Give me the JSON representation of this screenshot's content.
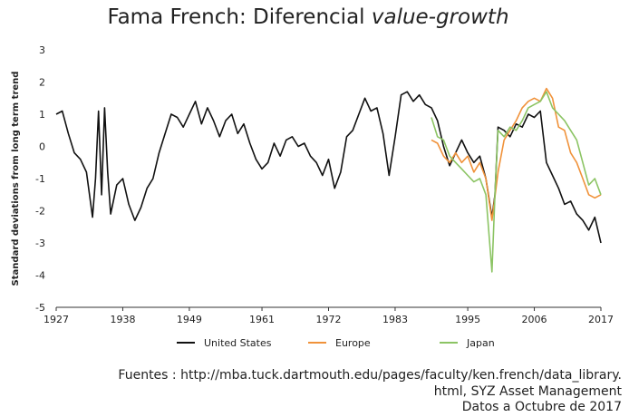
{
  "chart_data": {
    "type": "line",
    "title": "Fama French: Diferencial",
    "title_emphasis": "value-growth",
    "ylabel": "Standard deviations from long term trend",
    "xlim": [
      1927,
      2017
    ],
    "xticks": [
      1927,
      1938,
      1949,
      1961,
      1972,
      1983,
      1995,
      2006,
      2017
    ],
    "ylim": [
      -5,
      3
    ],
    "yticks": [
      3,
      2,
      1,
      0,
      -1,
      -2,
      -3,
      -4,
      -5
    ],
    "series": [
      {
        "name": "United States",
        "color": "#111111",
        "x": [
          1927,
          1928,
          1929,
          1930,
          1931,
          1932,
          1933,
          1933.5,
          1934,
          1934.5,
          1935,
          1935.5,
          1936,
          1937,
          1938,
          1939,
          1940,
          1941,
          1942,
          1943,
          1944,
          1945,
          1946,
          1947,
          1948,
          1949,
          1950,
          1951,
          1952,
          1953,
          1954,
          1955,
          1956,
          1957,
          1958,
          1959,
          1960,
          1961,
          1962,
          1963,
          1964,
          1965,
          1966,
          1967,
          1968,
          1969,
          1970,
          1971,
          1972,
          1973,
          1974,
          1975,
          1976,
          1977,
          1978,
          1979,
          1980,
          1981,
          1982,
          1983,
          1984,
          1985,
          1986,
          1987,
          1988,
          1989,
          1990,
          1991,
          1992,
          1993,
          1994,
          1995,
          1996,
          1997,
          1998,
          1999,
          1999.5,
          2000,
          2001,
          2002,
          2003,
          2004,
          2005,
          2006,
          2007,
          2008,
          2009,
          2010,
          2011,
          2012,
          2013,
          2014,
          2015,
          2016,
          2017
        ],
        "values": [
          1.0,
          1.1,
          0.4,
          -0.2,
          -0.4,
          -0.8,
          -2.2,
          -1.0,
          1.1,
          -1.5,
          1.2,
          -0.8,
          -2.1,
          -1.2,
          -1.0,
          -1.8,
          -2.3,
          -1.9,
          -1.3,
          -1.0,
          -0.2,
          0.4,
          1.0,
          0.9,
          0.6,
          1.0,
          1.4,
          0.7,
          1.2,
          0.8,
          0.3,
          0.8,
          1.0,
          0.4,
          0.7,
          0.1,
          -0.4,
          -0.7,
          -0.5,
          0.1,
          -0.3,
          0.2,
          0.3,
          0.0,
          0.1,
          -0.3,
          -0.5,
          -0.9,
          -0.4,
          -1.3,
          -0.8,
          0.3,
          0.5,
          1.0,
          1.5,
          1.1,
          1.2,
          0.4,
          -0.9,
          0.3,
          1.6,
          1.7,
          1.4,
          1.6,
          1.3,
          1.2,
          0.8,
          0.0,
          -0.6,
          -0.2,
          0.2,
          -0.2,
          -0.5,
          -0.3,
          -1.0,
          -2.2,
          -1.5,
          0.6,
          0.5,
          0.3,
          0.7,
          0.6,
          1.0,
          0.9,
          1.1,
          -0.5,
          -0.9,
          -1.3,
          -1.8,
          -1.7,
          -2.1,
          -2.3,
          -2.6,
          -2.2,
          -3.0
        ]
      },
      {
        "name": "Europe",
        "color": "#f0923a",
        "x": [
          1989,
          1990,
          1991,
          1992,
          1993,
          1994,
          1995,
          1996,
          1997,
          1998,
          1999,
          2000,
          2001,
          2002,
          2003,
          2004,
          2005,
          2006,
          2007,
          2008,
          2009,
          2010,
          2011,
          2012,
          2013,
          2014,
          2015,
          2016,
          2017
        ],
        "values": [
          0.2,
          0.1,
          -0.3,
          -0.5,
          -0.2,
          -0.5,
          -0.3,
          -0.8,
          -0.5,
          -1.0,
          -2.3,
          -0.8,
          0.2,
          0.5,
          0.8,
          1.2,
          1.4,
          1.5,
          1.4,
          1.8,
          1.5,
          0.6,
          0.5,
          -0.2,
          -0.5,
          -1.0,
          -1.5,
          -1.6,
          -1.5
        ]
      },
      {
        "name": "Japan",
        "color": "#8cc464",
        "x": [
          1989,
          1990,
          1991,
          1992,
          1993,
          1994,
          1995,
          1996,
          1997,
          1998,
          1999,
          1999.5,
          2000,
          2001,
          2002,
          2003,
          2004,
          2005,
          2006,
          2007,
          2008,
          2009,
          2010,
          2011,
          2012,
          2013,
          2014,
          2015,
          2016,
          2017
        ],
        "values": [
          0.9,
          0.3,
          0.2,
          -0.3,
          -0.5,
          -0.7,
          -0.9,
          -1.1,
          -1.0,
          -1.5,
          -3.9,
          -1.5,
          0.5,
          0.3,
          0.6,
          0.5,
          0.8,
          1.2,
          1.3,
          1.4,
          1.7,
          1.2,
          1.0,
          0.8,
          0.5,
          0.2,
          -0.5,
          -1.2,
          -1.0,
          -1.5
        ]
      }
    ]
  },
  "source": [
    "Fuentes :  http://mba.tuck.dartmouth.edu/pages/faculty/ken.french/data_library.",
    "html, SYZ Asset Management",
    "Datos a Octubre de 2017"
  ]
}
